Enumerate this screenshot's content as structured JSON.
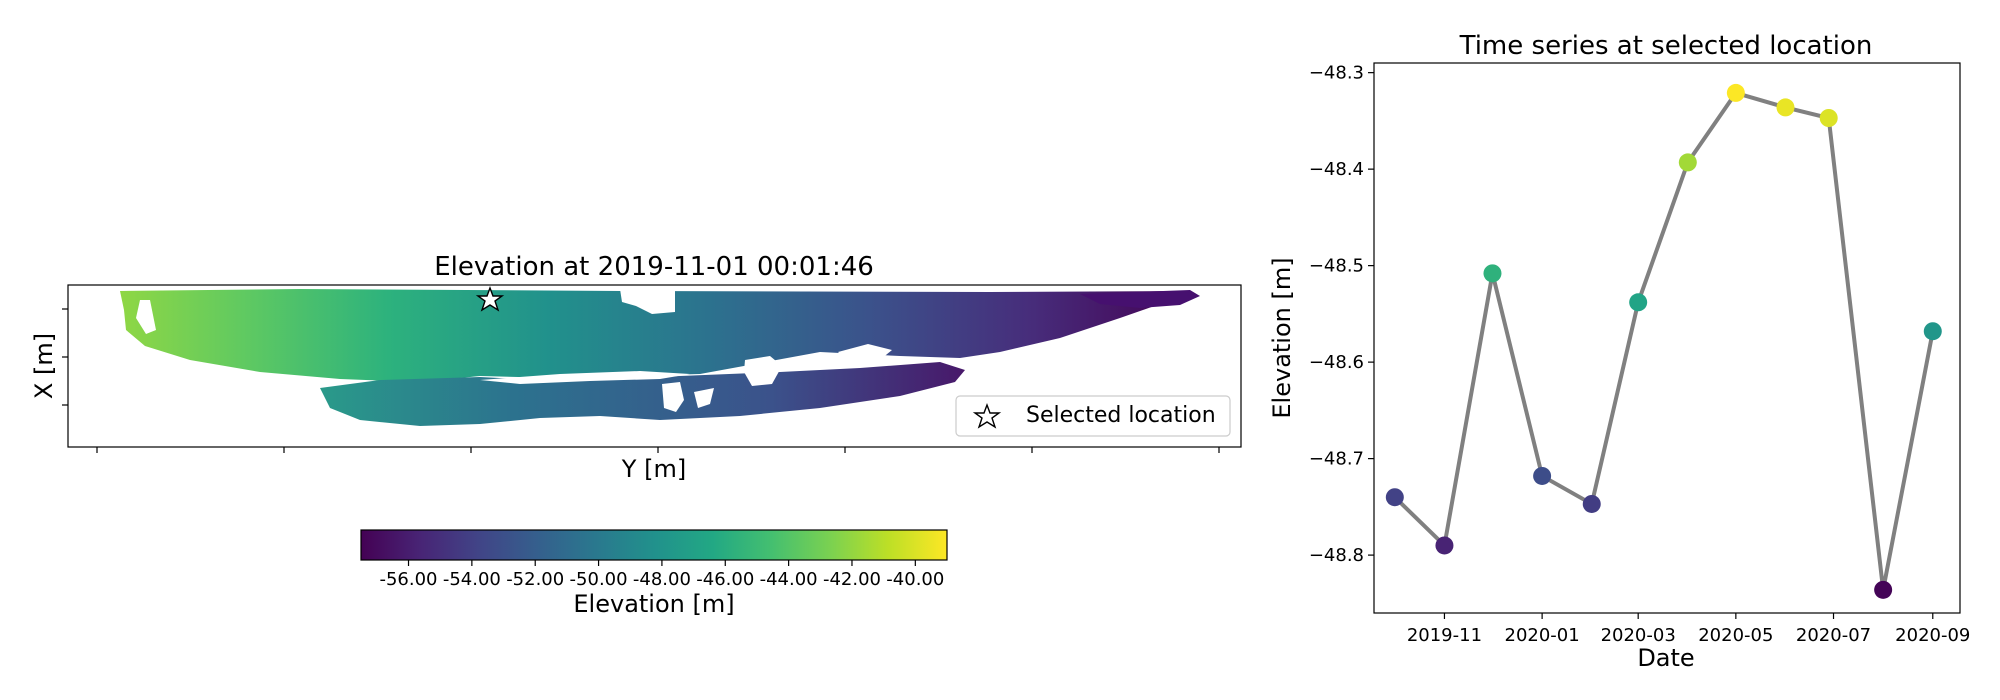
{
  "chart_data": [
    {
      "type": "heatmap",
      "title": "Elevation at 2019-11-01 00:01:46",
      "xlabel": "Y [m]",
      "ylabel": "X [m]",
      "x_ticks_labeled": false,
      "y_ticks_labeled": false,
      "legend": {
        "entries": [
          "Selected location"
        ],
        "placement": "lower-right"
      },
      "colorbar": {
        "label": "Elevation [m]",
        "colormap": "viridis",
        "range": [
          -57.5,
          -39.0
        ],
        "ticks": [
          -56.0,
          -54.0,
          -52.0,
          -50.0,
          -48.0,
          -46.0,
          -44.0,
          -42.0,
          -40.0
        ],
        "tick_labels": [
          "-56.00",
          "-54.00",
          "-52.00",
          "-50.00",
          "-48.00",
          "-46.00",
          "-44.00",
          "-42.00",
          "-40.00"
        ]
      }
    },
    {
      "type": "line",
      "title": "Time series at selected location",
      "xlabel": "Date",
      "ylabel": "Elevation [m]",
      "x_tick_labels": [
        "2019-11",
        "2020-01",
        "2020-03",
        "2020-05",
        "2020-07",
        "2020-09"
      ],
      "y_tick_labels": [
        "−48.3",
        "−48.4",
        "−48.5",
        "−48.6",
        "−48.7",
        "−48.8"
      ],
      "y_ticks": [
        -48.3,
        -48.4,
        -48.5,
        -48.6,
        -48.7,
        -48.8
      ],
      "ylim": [
        -48.86,
        -48.29
      ],
      "xlim": [
        "2019-09-18",
        "2020-09-18"
      ],
      "line_color": "#808080",
      "marker_colormap": "viridis",
      "marker_color_range": [
        -48.84,
        -48.32
      ],
      "points": [
        {
          "x": "2019-10-01",
          "y": -48.74
        },
        {
          "x": "2019-11-01",
          "y": -48.79
        },
        {
          "x": "2019-12-01",
          "y": -48.508
        },
        {
          "x": "2020-01-01",
          "y": -48.718
        },
        {
          "x": "2020-02-01",
          "y": -48.747
        },
        {
          "x": "2020-03-01",
          "y": -48.538
        },
        {
          "x": "2020-04-01",
          "y": -48.393
        },
        {
          "x": "2020-05-01",
          "y": -48.321
        },
        {
          "x": "2020-06-01",
          "y": -48.336
        },
        {
          "x": "2020-06-28",
          "y": -48.347
        },
        {
          "x": "2020-08-01",
          "y": -48.836
        },
        {
          "x": "2020-09-01",
          "y": -48.568
        }
      ]
    }
  ]
}
